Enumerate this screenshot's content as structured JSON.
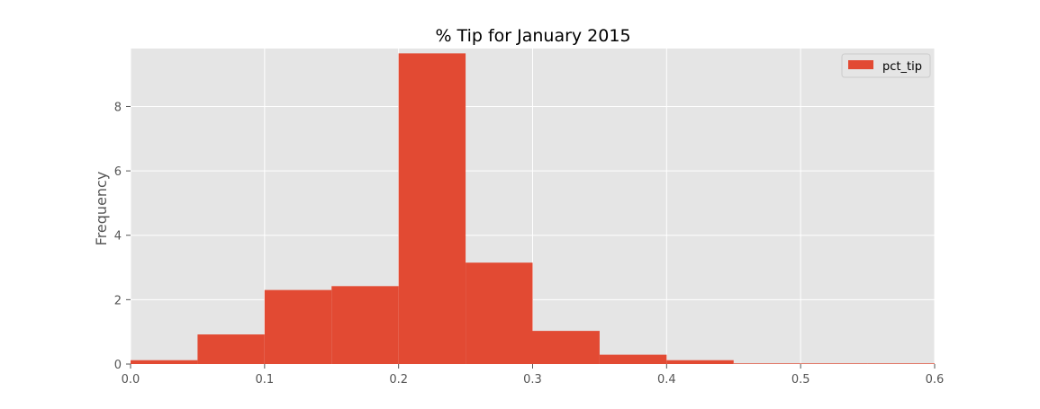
{
  "chart_data": {
    "type": "bar",
    "subtype": "histogram",
    "title": "% Tip for January 2015",
    "xlabel": "",
    "ylabel": "Frequency",
    "xlim": [
      0.0,
      0.6
    ],
    "ylim": [
      0,
      9.8
    ],
    "xticks": [
      "0.0",
      "0.1",
      "0.2",
      "0.3",
      "0.4",
      "0.5",
      "0.6"
    ],
    "yticks": [
      "0",
      "2",
      "4",
      "6",
      "8"
    ],
    "bin_edges": [
      0.0,
      0.05,
      0.1,
      0.15,
      0.2,
      0.25,
      0.3,
      0.35,
      0.4,
      0.45,
      0.5,
      0.55,
      0.6
    ],
    "series": [
      {
        "name": "pct_tip",
        "values": [
          0.12,
          0.92,
          2.3,
          2.42,
          9.65,
          3.15,
          1.03,
          0.29,
          0.12,
          0.02,
          0.02,
          0.02
        ]
      }
    ],
    "legend": {
      "position": "top-right",
      "entries": [
        "pct_tip"
      ]
    },
    "grid": true,
    "colors": {
      "bar": "#E24A33",
      "plot_background": "#E5E5E5",
      "grid": "#FFFFFF",
      "tick_text": "#555555",
      "title_text": "#000000"
    }
  }
}
